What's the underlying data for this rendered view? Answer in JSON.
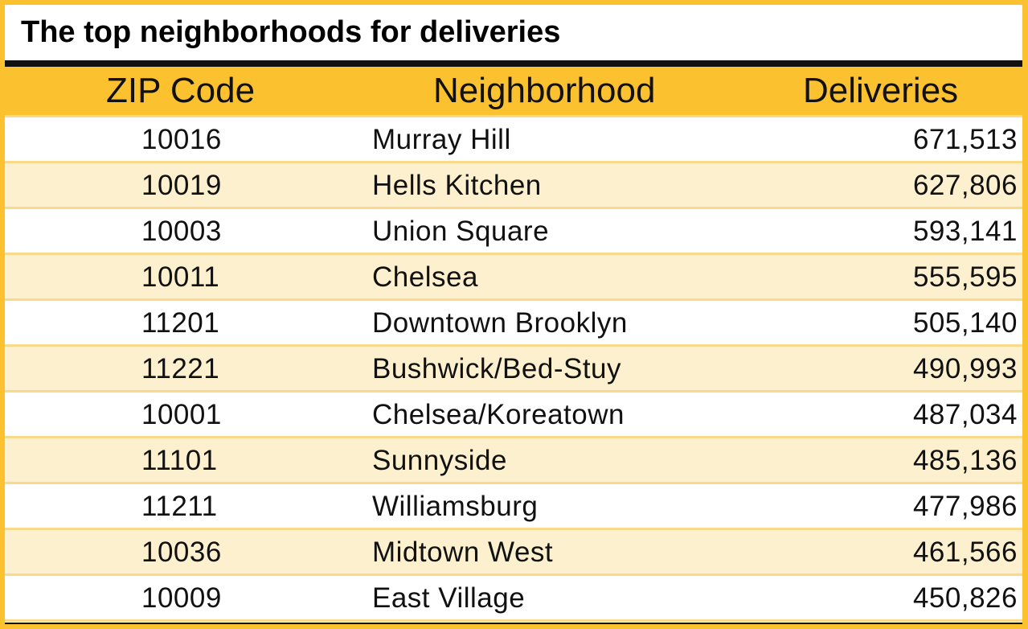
{
  "chart_data": {
    "type": "table",
    "title": "The top neighborhoods for deliveries",
    "columns": [
      "ZIP Code",
      "Neighborhood",
      "Deliveries"
    ],
    "rows": [
      [
        "10016",
        "Murray Hill",
        "671,513"
      ],
      [
        "10019",
        "Hells Kitchen",
        "627,806"
      ],
      [
        "10003",
        "Union Square",
        "593,141"
      ],
      [
        "10011",
        "Chelsea",
        "555,595"
      ],
      [
        "11201",
        "Downtown Brooklyn",
        "505,140"
      ],
      [
        "11221",
        "Bushwick/Bed-Stuy",
        "490,993"
      ],
      [
        "10001",
        "Chelsea/Koreatown",
        "487,034"
      ],
      [
        "11101",
        "Sunnyside",
        "485,136"
      ],
      [
        "11211",
        "Williamsburg",
        "477,986"
      ],
      [
        "10036",
        "Midtown West",
        "461,566"
      ],
      [
        "10009",
        "East Village",
        "450,826"
      ]
    ],
    "values": [
      671513,
      627806,
      593141,
      555595,
      505140,
      490993,
      487034,
      485136,
      477986,
      461566,
      450826
    ]
  },
  "colors": {
    "header_bg": "#fbc12e",
    "band_bg": "#fdf0cf",
    "border": "#111111"
  }
}
